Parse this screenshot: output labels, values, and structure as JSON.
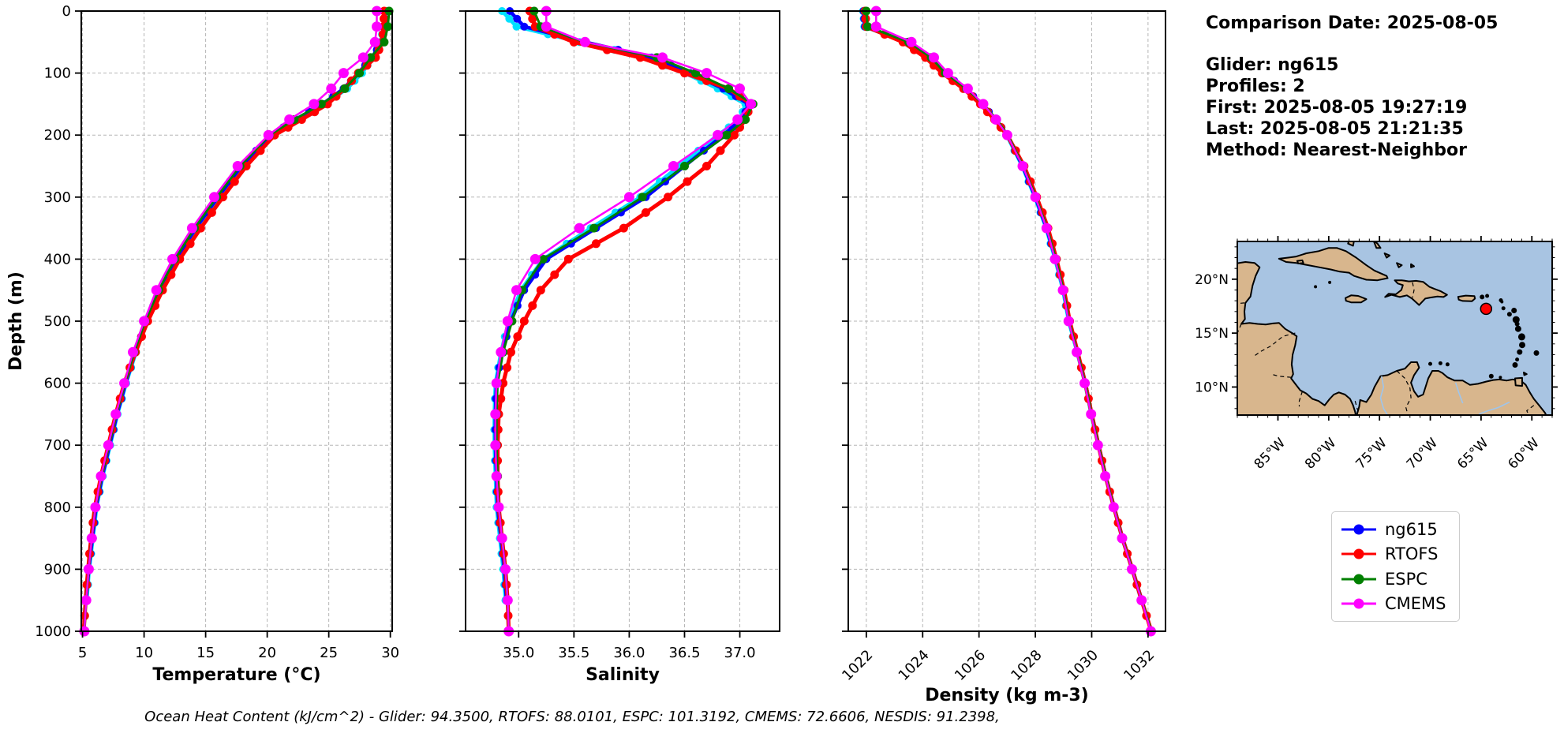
{
  "info": {
    "comparison_date": "Comparison Date: 2025-08-05",
    "glider": "Glider: ng615",
    "profiles": "Profiles: 2",
    "first": "First: 2025-08-05 19:27:19",
    "last": "Last: 2025-08-05 21:21:35",
    "method": "Method: Nearest-Neighbor"
  },
  "caption": {
    "text": "Ocean Heat Content (kJ/cm^2) - Glider: 94.3500,  RTOFS: 88.0101,  ESPC: 101.3192,  CMEMS: 72.6606,  NESDIS: 91.2398,"
  },
  "legend": {
    "entries": [
      {
        "label": "ng615",
        "color": "#0000ff"
      },
      {
        "label": "RTOFS",
        "color": "#ff0000"
      },
      {
        "label": "ESPC",
        "color": "#008000"
      },
      {
        "label": "CMEMS",
        "color": "#ff00ff"
      }
    ]
  },
  "chart_data": [
    {
      "type": "line",
      "panel": "temperature",
      "xlabel": "Temperature (°C)",
      "ylabel": "Depth (m)",
      "xlim": [
        4.9,
        30.15
      ],
      "ylim": [
        0,
        1000
      ],
      "y_inverted": true,
      "grid": true,
      "xticks": [
        5,
        10,
        15,
        20,
        25,
        30
      ],
      "xtick_labels": [
        "5",
        "10",
        "15",
        "20",
        "25",
        "30"
      ],
      "yticks": [
        0,
        100,
        200,
        300,
        400,
        500,
        600,
        700,
        800,
        900,
        1000
      ],
      "ytick_labels": [
        "0",
        "100",
        "200",
        "300",
        "400",
        "500",
        "600",
        "700",
        "800",
        "900",
        "1000"
      ],
      "depths": [
        0,
        25,
        50,
        75,
        100,
        125,
        150,
        175,
        200,
        250,
        300,
        350,
        400,
        450,
        500,
        550,
        600,
        650,
        700,
        750,
        800,
        850,
        900,
        950,
        1000
      ],
      "series": [
        {
          "name": "(unlabeled cyan glider profile)",
          "color": "#00e0ff",
          "line_width": 4.5,
          "marker_size": 5,
          "marker_subdivide": 2,
          "in_legend": false,
          "values": [
            29.5,
            29.45,
            29.2,
            28.6,
            27.7,
            26.5,
            24.7,
            22.5,
            20.4,
            18.0,
            16.1,
            14.3,
            12.7,
            11.35,
            10.25,
            9.35,
            8.55,
            7.85,
            7.25,
            6.65,
            6.15,
            5.85,
            5.55,
            5.35,
            null
          ]
        },
        {
          "name": "ng615",
          "color": "#0000ff",
          "line_width": 4.5,
          "marker_size": 5,
          "marker_subdivide": 2,
          "in_legend": true,
          "values": [
            29.6,
            29.55,
            29.3,
            28.5,
            27.4,
            26.2,
            24.5,
            22.3,
            20.3,
            17.9,
            16.0,
            14.2,
            12.6,
            11.3,
            10.2,
            9.3,
            8.5,
            7.8,
            7.2,
            6.6,
            6.1,
            5.8,
            5.5,
            5.3,
            null
          ]
        },
        {
          "name": "RTOFS",
          "color": "#ff0000",
          "line_width": 5,
          "marker_size": 5.5,
          "marker_subdivide": 2,
          "in_legend": true,
          "values": [
            29.5,
            29.45,
            29.35,
            28.8,
            27.4,
            26.3,
            24.9,
            22.8,
            20.6,
            18.3,
            16.4,
            14.6,
            12.9,
            11.5,
            10.3,
            9.3,
            8.4,
            7.7,
            7.1,
            6.5,
            6.0,
            5.7,
            5.45,
            5.25,
            5.1
          ]
        },
        {
          "name": "ESPC",
          "color": "#008000",
          "line_width": 3,
          "marker_size": 5.5,
          "marker_subdivide": 1,
          "in_legend": true,
          "values": [
            29.9,
            29.8,
            29.5,
            28.4,
            27.5,
            26.3,
            24.4,
            22.2,
            20.2,
            17.8,
            15.9,
            14.1,
            12.5,
            11.2,
            10.1,
            9.2,
            8.45,
            7.75,
            7.15,
            6.55,
            6.05,
            5.75,
            5.5,
            5.3,
            5.15
          ]
        },
        {
          "name": "CMEMS",
          "color": "#ff00ff",
          "line_width": 2.5,
          "marker_size": 6.5,
          "marker_subdivide": 1,
          "in_legend": true,
          "values": [
            28.9,
            28.9,
            28.75,
            27.8,
            26.2,
            25.2,
            23.8,
            21.8,
            20.1,
            17.6,
            15.7,
            13.9,
            12.3,
            11.0,
            10.0,
            9.1,
            8.4,
            7.7,
            7.1,
            6.5,
            6.05,
            5.75,
            5.5,
            5.3,
            5.15
          ]
        }
      ]
    },
    {
      "type": "line",
      "panel": "salinity",
      "xlabel": "Salinity",
      "ylabel": "",
      "xlim": [
        34.52,
        37.36
      ],
      "ylim": [
        0,
        1000
      ],
      "y_inverted": true,
      "grid": true,
      "xticks": [
        35.0,
        35.5,
        36.0,
        36.5,
        37.0
      ],
      "xtick_labels": [
        "35.0",
        "35.5",
        "36.0",
        "36.5",
        "37.0"
      ],
      "yticks": [
        0,
        100,
        200,
        300,
        400,
        500,
        600,
        700,
        800,
        900,
        1000
      ],
      "ytick_labels": [],
      "depths": [
        0,
        25,
        50,
        75,
        100,
        125,
        150,
        175,
        200,
        250,
        300,
        350,
        400,
        450,
        500,
        550,
        600,
        650,
        700,
        750,
        800,
        850,
        900,
        950,
        1000
      ],
      "series": [
        {
          "name": "(unlabeled cyan glider profile)",
          "color": "#00e0ff",
          "line_width": 4.5,
          "marker_size": 5,
          "marker_subdivide": 2,
          "in_legend": false,
          "values": [
            34.85,
            34.98,
            35.55,
            36.18,
            36.5,
            36.8,
            37.05,
            37.0,
            36.8,
            36.45,
            36.1,
            35.65,
            35.22,
            35.02,
            34.91,
            34.84,
            34.79,
            34.78,
            34.78,
            34.79,
            34.8,
            34.83,
            34.86,
            34.88,
            null
          ]
        },
        {
          "name": "ng615",
          "color": "#0000ff",
          "line_width": 4.5,
          "marker_size": 5,
          "marker_subdivide": 2,
          "in_legend": true,
          "values": [
            34.92,
            35.05,
            35.6,
            36.2,
            36.55,
            36.85,
            37.08,
            37.02,
            36.85,
            36.5,
            36.15,
            35.7,
            35.25,
            35.05,
            34.93,
            34.85,
            34.8,
            34.79,
            34.79,
            34.8,
            34.81,
            34.84,
            34.87,
            34.89,
            null
          ]
        },
        {
          "name": "RTOFS",
          "color": "#ff0000",
          "line_width": 5,
          "marker_size": 5.5,
          "marker_subdivide": 2,
          "in_legend": true,
          "values": [
            35.1,
            35.15,
            35.5,
            36.1,
            36.5,
            36.9,
            37.1,
            37.05,
            36.95,
            36.7,
            36.35,
            35.95,
            35.45,
            35.2,
            35.05,
            34.93,
            34.86,
            34.82,
            34.81,
            34.81,
            34.82,
            34.85,
            34.88,
            34.9,
            34.91
          ]
        },
        {
          "name": "ESPC",
          "color": "#008000",
          "line_width": 3,
          "marker_size": 5.5,
          "marker_subdivide": 1,
          "in_legend": true,
          "values": [
            35.14,
            35.2,
            35.6,
            36.25,
            36.6,
            36.9,
            37.12,
            37.05,
            36.88,
            36.5,
            36.12,
            35.68,
            35.22,
            35.03,
            34.94,
            34.86,
            34.81,
            34.8,
            34.8,
            34.81,
            34.82,
            34.85,
            34.88,
            34.9,
            34.91
          ]
        },
        {
          "name": "CMEMS",
          "color": "#ff00ff",
          "line_width": 2.5,
          "marker_size": 6.5,
          "marker_subdivide": 1,
          "in_legend": true,
          "values": [
            35.25,
            35.25,
            35.6,
            36.3,
            36.7,
            37.0,
            37.1,
            36.98,
            36.8,
            36.4,
            36.0,
            35.55,
            35.15,
            34.98,
            34.9,
            34.84,
            34.8,
            34.79,
            34.79,
            34.8,
            34.82,
            34.85,
            34.88,
            34.9,
            34.91
          ]
        }
      ]
    },
    {
      "type": "line",
      "panel": "density",
      "xlabel": "Density (kg m-3)",
      "ylabel": "",
      "xlim": [
        1021.36,
        1032.62
      ],
      "ylim": [
        0,
        1000
      ],
      "y_inverted": true,
      "grid": true,
      "xticks": [
        1022,
        1024,
        1026,
        1028,
        1030,
        1032
      ],
      "xtick_labels": [
        "1022",
        "1024",
        "1026",
        "1028",
        "1030",
        "1032"
      ],
      "xtick_rotation": 45,
      "yticks": [
        0,
        100,
        200,
        300,
        400,
        500,
        600,
        700,
        800,
        900,
        1000
      ],
      "ytick_labels": [],
      "depths": [
        0,
        25,
        50,
        75,
        100,
        125,
        150,
        175,
        200,
        250,
        300,
        350,
        400,
        450,
        500,
        550,
        600,
        650,
        700,
        750,
        800,
        850,
        900,
        950,
        1000
      ],
      "series": [
        {
          "name": "(unlabeled cyan glider profile)",
          "color": "#00e0ff",
          "line_width": 4.5,
          "marker_size": 5,
          "marker_subdivide": 2,
          "in_legend": false,
          "values": [
            1021.88,
            1021.93,
            1023.38,
            1024.18,
            1024.73,
            1025.48,
            1026.08,
            1026.58,
            1026.98,
            1027.53,
            1027.98,
            1028.38,
            1028.7,
            1028.98,
            1029.18,
            1029.48,
            1029.76,
            1029.98,
            1030.23,
            1030.48,
            1030.78,
            1031.08,
            1031.43,
            1031.76,
            null
          ]
        },
        {
          "name": "ng615",
          "color": "#0000ff",
          "line_width": 4.5,
          "marker_size": 5,
          "marker_subdivide": 2,
          "in_legend": true,
          "values": [
            1021.9,
            1021.95,
            1023.4,
            1024.2,
            1024.75,
            1025.5,
            1026.1,
            1026.6,
            1027.0,
            1027.55,
            1028.0,
            1028.4,
            1028.72,
            1029.0,
            1029.2,
            1029.5,
            1029.78,
            1030.0,
            1030.25,
            1030.5,
            1030.8,
            1031.1,
            1031.45,
            1031.78,
            null
          ]
        },
        {
          "name": "RTOFS",
          "color": "#ff0000",
          "line_width": 5,
          "marker_size": 5.5,
          "marker_subdivide": 2,
          "in_legend": true,
          "values": [
            1021.95,
            1022.0,
            1023.3,
            1024.1,
            1024.7,
            1025.45,
            1026.05,
            1026.55,
            1027.0,
            1027.6,
            1028.05,
            1028.45,
            1028.75,
            1029.02,
            1029.22,
            1029.5,
            1029.77,
            1030.0,
            1030.24,
            1030.49,
            1030.79,
            1031.09,
            1031.44,
            1031.77,
            1032.12
          ]
        },
        {
          "name": "ESPC",
          "color": "#008000",
          "line_width": 3,
          "marker_size": 5.5,
          "marker_subdivide": 1,
          "in_legend": true,
          "values": [
            1022.0,
            1022.05,
            1023.5,
            1024.3,
            1024.8,
            1025.55,
            1026.15,
            1026.63,
            1027.02,
            1027.57,
            1028.02,
            1028.42,
            1028.73,
            1029.0,
            1029.2,
            1029.49,
            1029.77,
            1030.0,
            1030.24,
            1030.5,
            1030.79,
            1031.09,
            1031.44,
            1031.78,
            1032.12
          ]
        },
        {
          "name": "CMEMS",
          "color": "#ff00ff",
          "line_width": 2.5,
          "marker_size": 6.5,
          "marker_subdivide": 1,
          "in_legend": true,
          "values": [
            1022.35,
            1022.35,
            1023.6,
            1024.4,
            1024.9,
            1025.6,
            1026.15,
            1026.6,
            1027.0,
            1027.55,
            1028.0,
            1028.4,
            1028.7,
            1028.98,
            1029.18,
            1029.47,
            1029.75,
            1029.98,
            1030.22,
            1030.48,
            1030.78,
            1031.08,
            1031.43,
            1031.77,
            1032.1
          ]
        }
      ]
    }
  ],
  "map": {
    "extent": {
      "lon": [
        -89,
        -58
      ],
      "lat": [
        7.4,
        23.5
      ]
    },
    "xticks": [
      -85,
      -80,
      -75,
      -70,
      -65,
      -60
    ],
    "xtick_labels": [
      "85°W",
      "80°W",
      "75°W",
      "70°W",
      "65°W",
      "60°W"
    ],
    "yticks": [
      20,
      15,
      10
    ],
    "ytick_labels": [
      "20°N",
      "15°N",
      "10°N"
    ],
    "marker": {
      "lon": -64.5,
      "lat": 17.25,
      "color": "#ff0000"
    },
    "ocean_color": "#a8c4e2",
    "land_color": "#d8b68d",
    "river_color": "#9ec5ec"
  }
}
